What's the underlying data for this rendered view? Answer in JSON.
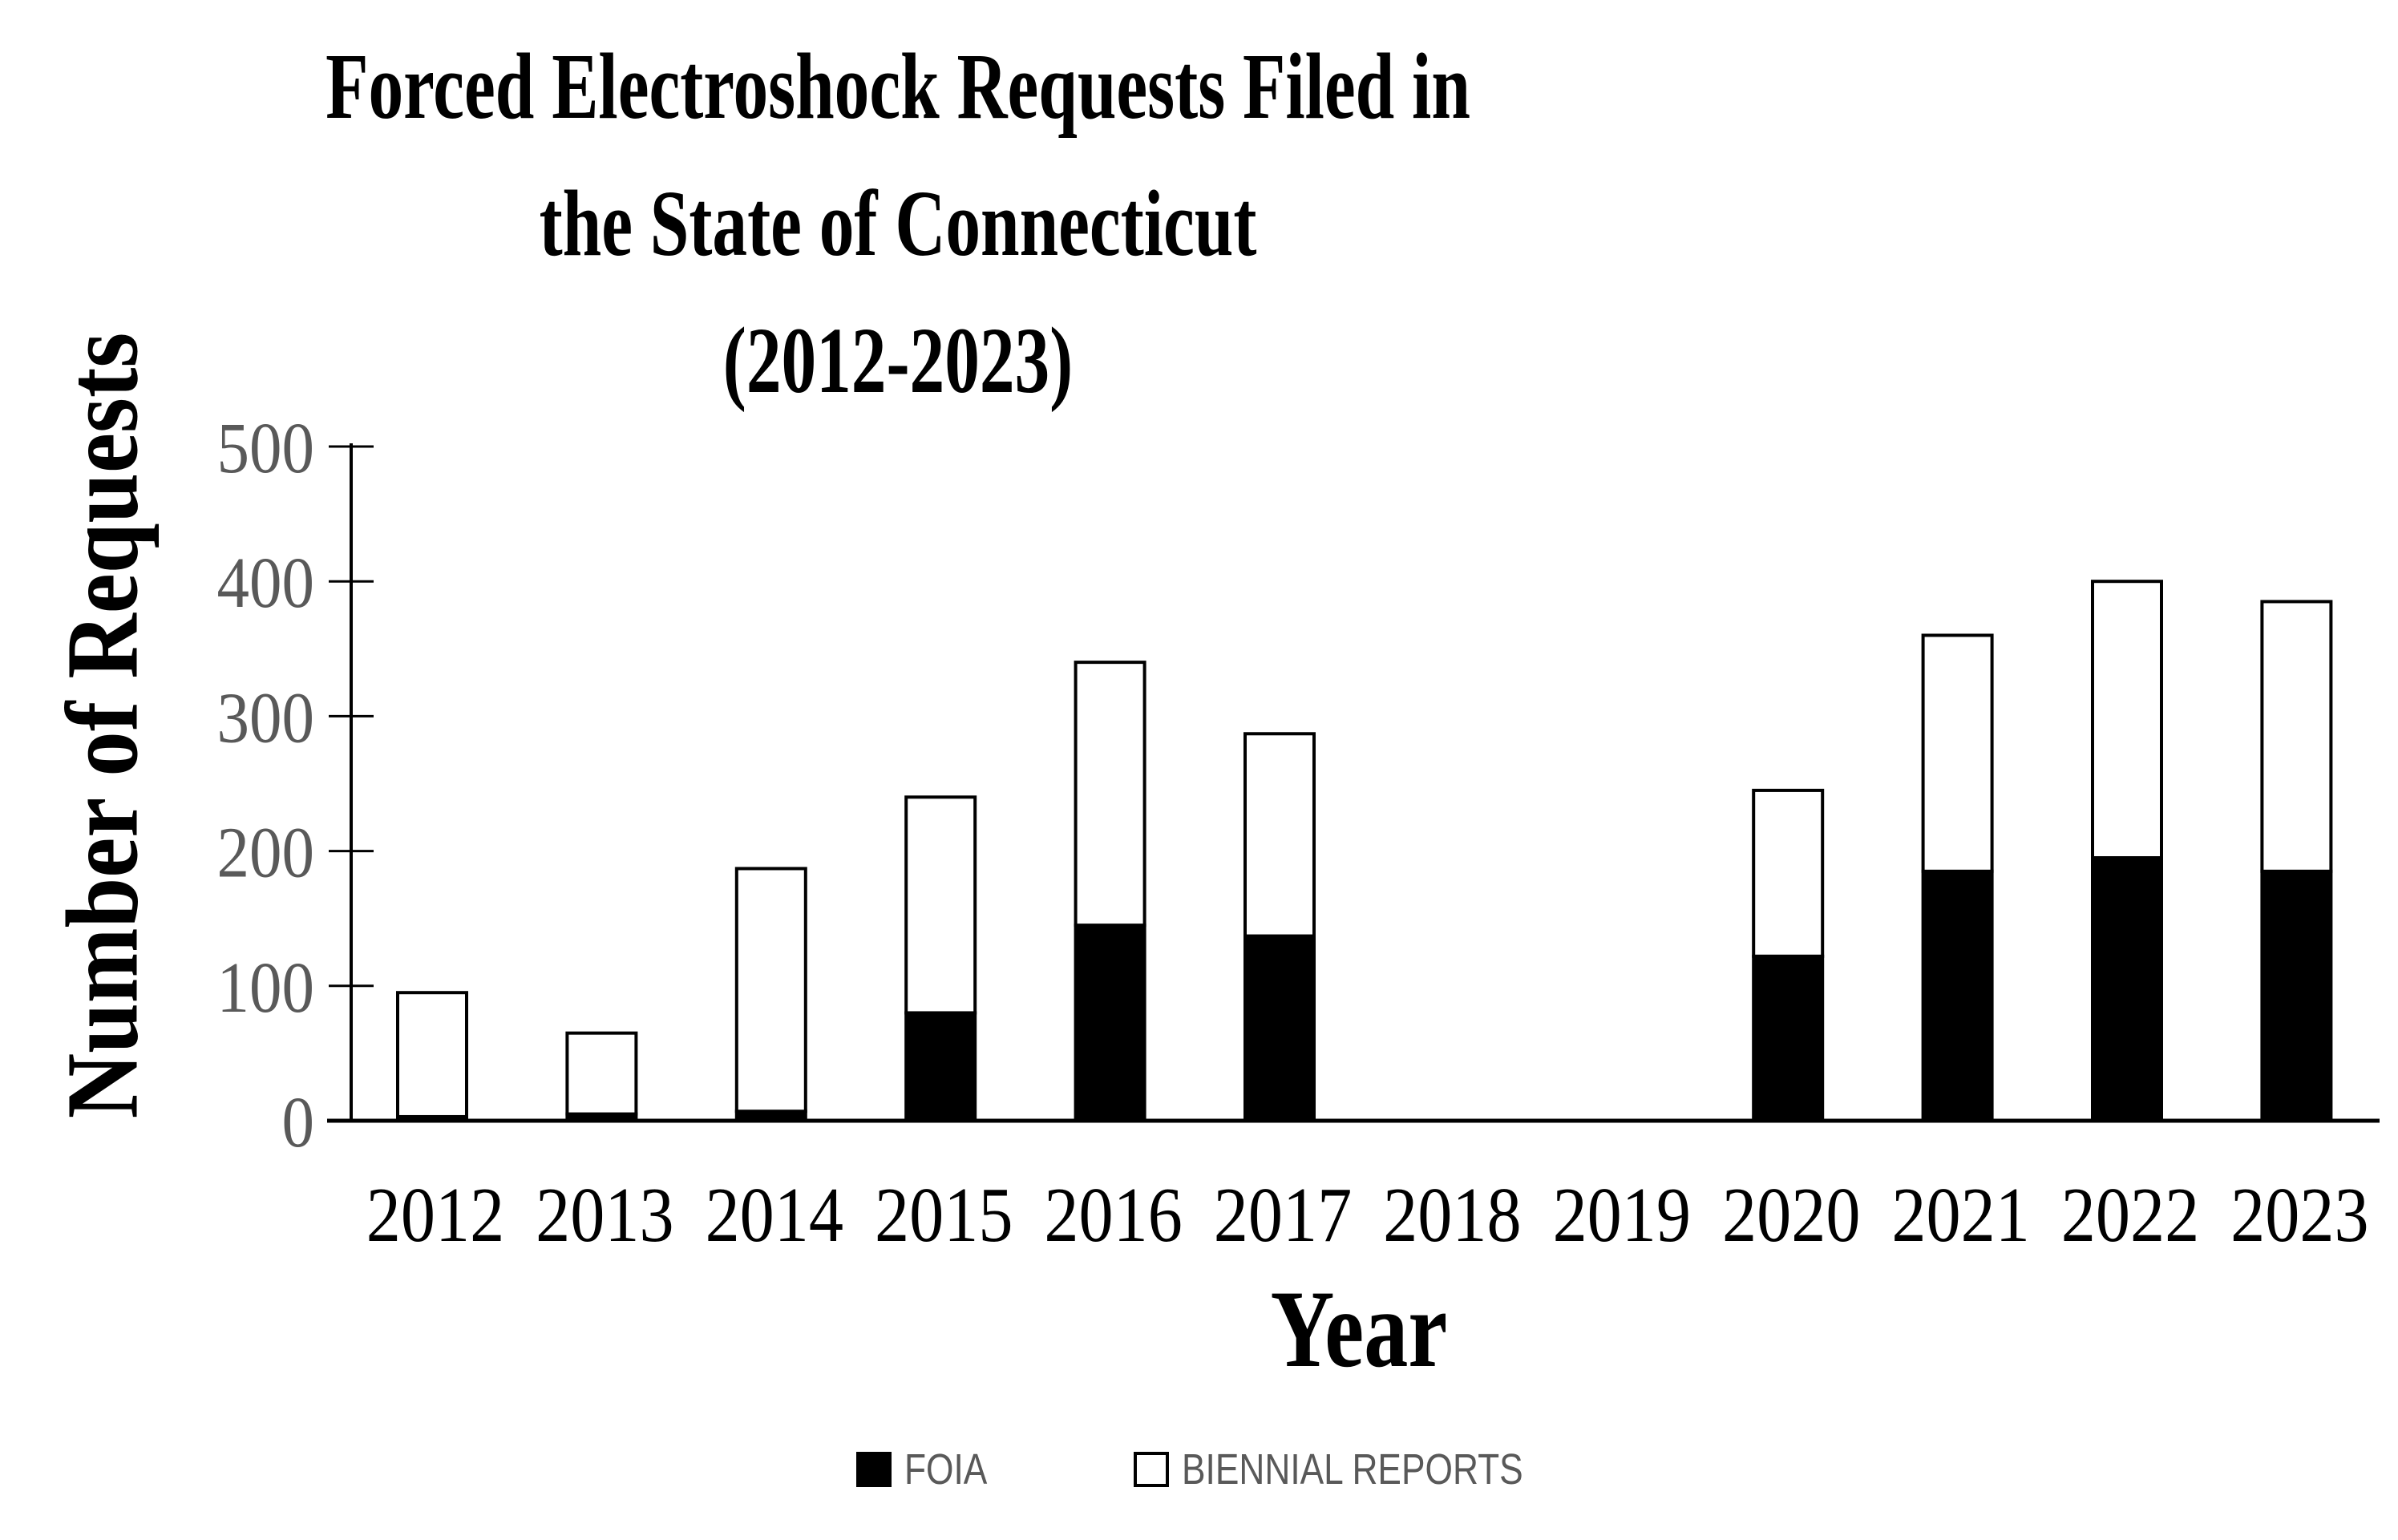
{
  "chart_data": {
    "type": "bar",
    "stacked": true,
    "title": [
      "Forced Electroshock Requests Filed in",
      "the State of Connecticut",
      "(2012-2023)"
    ],
    "xlabel": "Year",
    "ylabel": "Number of Requests",
    "categories": [
      "2012",
      "2013",
      "2014",
      "2015",
      "2016",
      "2017",
      "2018",
      "2019",
      "2020",
      "2021",
      "2022",
      "2023"
    ],
    "series": [
      {
        "name": "FOIA",
        "color": "#000000",
        "values": [
          3,
          5,
          7,
          80,
          145,
          137,
          0,
          0,
          122,
          185,
          195,
          185
        ]
      },
      {
        "name": "BIENNIAL REPORTS",
        "color": "#ffffff",
        "values": [
          92,
          60,
          180,
          160,
          195,
          150,
          0,
          0,
          123,
          175,
          205,
          200
        ]
      }
    ],
    "totals": [
      95,
      65,
      187,
      240,
      340,
      287,
      0,
      0,
      245,
      360,
      400,
      385
    ],
    "ylim": [
      0,
      500
    ],
    "yticks": [
      0,
      100,
      200,
      300,
      400,
      500
    ],
    "grid": false,
    "legend_position": "bottom",
    "axis_color": "#000000",
    "tick_label_color": "#595959",
    "legend_text_color": "#595959"
  }
}
